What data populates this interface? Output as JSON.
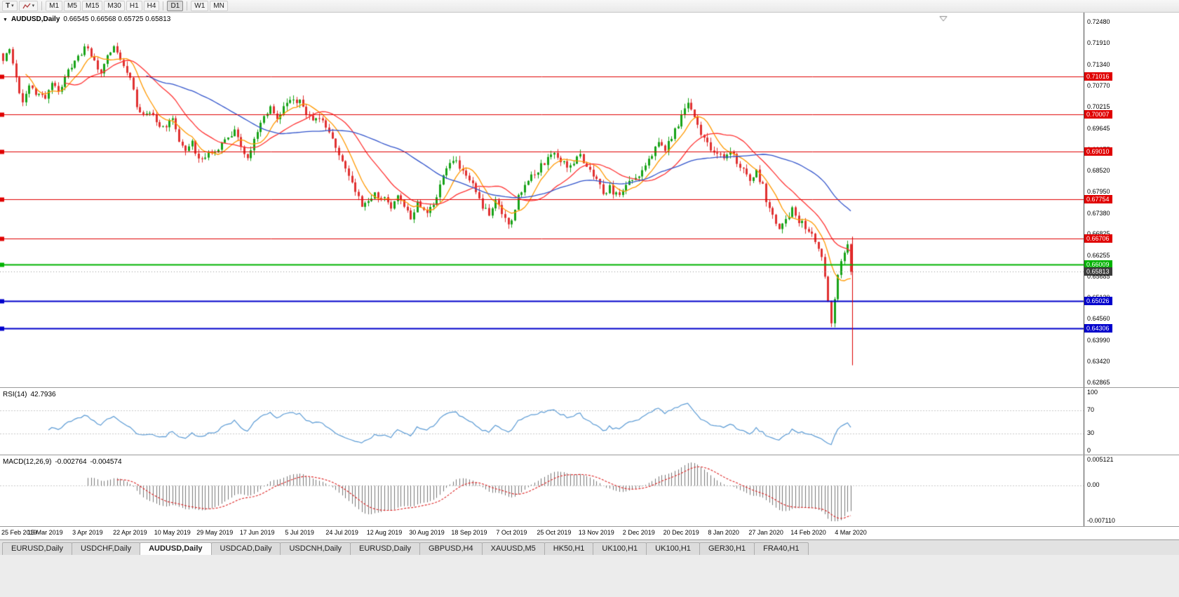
{
  "toolbar": {
    "templates_glyph": "T",
    "caret_glyph": "▾",
    "timeframes": [
      "M1",
      "M5",
      "M15",
      "M30",
      "H1",
      "H4",
      "D1",
      "W1",
      "MN"
    ],
    "active_timeframe": "D1"
  },
  "chart": {
    "icon": "▼",
    "title": "AUDUSD,Daily",
    "ohlc": "0.66545 0.66568 0.65725 0.65813"
  },
  "rsi_panel": {
    "label": "RSI(14)",
    "value": "42.7936"
  },
  "macd_panel": {
    "label": "MACD(12,26,9)",
    "value_main": "-0.002764",
    "value_signal": "-0.004574"
  },
  "tabs": {
    "items": [
      "EURUSD,Daily",
      "USDCHF,Daily",
      "AUDUSD,Daily",
      "USDCAD,Daily",
      "USDCNH,Daily",
      "EURUSD,Daily",
      "GBPUSD,H4",
      "XAUUSD,M5",
      "HK50,H1",
      "UK100,H1",
      "UK100,H1",
      "GER30,H1",
      "FRA40,H1"
    ],
    "active_index": 2
  },
  "chart_data": {
    "type": "candlestick",
    "symbol": "AUDUSD",
    "period": "Daily",
    "last_bar": {
      "o": 0.66545,
      "h": 0.66568,
      "l": 0.65725,
      "c": 0.65813
    },
    "bars": 261,
    "bars_per_label": 13,
    "x_labels": [
      "25 Feb 2019",
      "15 Mar 2019",
      "3 Apr 2019",
      "22 Apr 2019",
      "10 May 2019",
      "29 May 2019",
      "17 Jun 2019",
      "5 Jul 2019",
      "24 Jul 2019",
      "12 Aug 2019",
      "30 Aug 2019",
      "18 Sep 2019",
      "7 Oct 2019",
      "25 Oct 2019",
      "13 Nov 2019",
      "2 Dec 2019",
      "20 Dec 2019",
      "8 Jan 2020",
      "27 Jan 2020",
      "14 Feb 2020",
      "4 Mar 2020"
    ],
    "y_ticks": [
      "0.72480",
      "0.71910",
      "0.71340",
      "0.70770",
      "0.70215",
      "0.69645",
      "0.69075",
      "0.68520",
      "0.67950",
      "0.67380",
      "0.66825",
      "0.66255",
      "0.65685",
      "0.65130",
      "0.64560",
      "0.63990",
      "0.63420",
      "0.62865"
    ],
    "ylim": [
      0.62865,
      0.7248
    ],
    "price_anchors": [
      [
        0,
        0.7148
      ],
      [
        2,
        0.7182
      ],
      [
        4,
        0.7092
      ],
      [
        6,
        0.7035
      ],
      [
        8,
        0.7072
      ],
      [
        10,
        0.7058
      ],
      [
        13,
        0.7045
      ],
      [
        15,
        0.7078
      ],
      [
        17,
        0.7068
      ],
      [
        19,
        0.7098
      ],
      [
        22,
        0.7142
      ],
      [
        24,
        0.7168
      ],
      [
        26,
        0.7183
      ],
      [
        28,
        0.714
      ],
      [
        30,
        0.7118
      ],
      [
        32,
        0.7162
      ],
      [
        34,
        0.7175
      ],
      [
        36,
        0.7148
      ],
      [
        39,
        0.7098
      ],
      [
        41,
        0.7022
      ],
      [
        43,
        0.6996
      ],
      [
        45,
        0.7014
      ],
      [
        47,
        0.6982
      ],
      [
        49,
        0.6962
      ],
      [
        52,
        0.6986
      ],
      [
        54,
        0.6936
      ],
      [
        56,
        0.6902
      ],
      [
        58,
        0.6924
      ],
      [
        60,
        0.6882
      ],
      [
        63,
        0.6898
      ],
      [
        65,
        0.6894
      ],
      [
        67,
        0.6924
      ],
      [
        69,
        0.6944
      ],
      [
        71,
        0.6958
      ],
      [
        73,
        0.6922
      ],
      [
        75,
        0.6886
      ],
      [
        78,
        0.6954
      ],
      [
        80,
        0.6988
      ],
      [
        82,
        0.7014
      ],
      [
        84,
        0.6992
      ],
      [
        86,
        0.7024
      ],
      [
        88,
        0.7046
      ],
      [
        91,
        0.7036
      ],
      [
        93,
        0.7008
      ],
      [
        95,
        0.6976
      ],
      [
        97,
        0.6999
      ],
      [
        99,
        0.6962
      ],
      [
        101,
        0.693
      ],
      [
        104,
        0.6882
      ],
      [
        106,
        0.6846
      ],
      [
        108,
        0.6796
      ],
      [
        110,
        0.6756
      ],
      [
        112,
        0.6774
      ],
      [
        114,
        0.6792
      ],
      [
        117,
        0.6772
      ],
      [
        119,
        0.6746
      ],
      [
        121,
        0.678
      ],
      [
        123,
        0.6762
      ],
      [
        125,
        0.6726
      ],
      [
        127,
        0.6766
      ],
      [
        130,
        0.6736
      ],
      [
        132,
        0.6762
      ],
      [
        134,
        0.6812
      ],
      [
        136,
        0.6856
      ],
      [
        138,
        0.6882
      ],
      [
        140,
        0.6858
      ],
      [
        143,
        0.683
      ],
      [
        145,
        0.6788
      ],
      [
        147,
        0.6756
      ],
      [
        149,
        0.6736
      ],
      [
        151,
        0.6772
      ],
      [
        153,
        0.6742
      ],
      [
        155,
        0.6702
      ],
      [
        156,
        0.6722
      ],
      [
        158,
        0.6786
      ],
      [
        160,
        0.6816
      ],
      [
        162,
        0.6838
      ],
      [
        164,
        0.6852
      ],
      [
        166,
        0.6872
      ],
      [
        169,
        0.6893
      ],
      [
        171,
        0.688
      ],
      [
        173,
        0.6856
      ],
      [
        175,
        0.6872
      ],
      [
        177,
        0.6893
      ],
      [
        179,
        0.6862
      ],
      [
        182,
        0.6822
      ],
      [
        184,
        0.6792
      ],
      [
        186,
        0.6806
      ],
      [
        188,
        0.6786
      ],
      [
        190,
        0.6802
      ],
      [
        192,
        0.6822
      ],
      [
        195,
        0.6842
      ],
      [
        197,
        0.6862
      ],
      [
        199,
        0.6892
      ],
      [
        201,
        0.6936
      ],
      [
        203,
        0.6908
      ],
      [
        205,
        0.6938
      ],
      [
        207,
        0.6972
      ],
      [
        208,
        0.6998
      ],
      [
        210,
        0.7028
      ],
      [
        212,
        0.6998
      ],
      [
        214,
        0.6948
      ],
      [
        216,
        0.6918
      ],
      [
        218,
        0.6898
      ],
      [
        221,
        0.6892
      ],
      [
        223,
        0.6906
      ],
      [
        225,
        0.6878
      ],
      [
        227,
        0.6852
      ],
      [
        229,
        0.6828
      ],
      [
        231,
        0.6846
      ],
      [
        233,
        0.6808
      ],
      [
        234,
        0.6774
      ],
      [
        236,
        0.6734
      ],
      [
        238,
        0.6702
      ],
      [
        240,
        0.6722
      ],
      [
        242,
        0.6746
      ],
      [
        244,
        0.6718
      ],
      [
        247,
        0.6692
      ],
      [
        249,
        0.6664
      ],
      [
        251,
        0.6612
      ],
      [
        252,
        0.6562
      ],
      [
        253,
        0.6498
      ],
      [
        254,
        0.6452
      ],
      [
        255,
        0.6512
      ],
      [
        256,
        0.6568
      ],
      [
        257,
        0.6612
      ],
      [
        258,
        0.6638
      ],
      [
        259,
        0.66545
      ],
      [
        260,
        0.65813
      ]
    ],
    "crash_bar": {
      "index": 254,
      "low": 0.6434
    },
    "horizontal_lines": [
      {
        "value": 0.71016,
        "color": "#e00000",
        "width": 1
      },
      {
        "value": 0.70007,
        "color": "#e00000",
        "width": 1
      },
      {
        "value": 0.6901,
        "color": "#e00000",
        "width": 1
      },
      {
        "value": 0.67754,
        "color": "#e00000",
        "width": 1
      },
      {
        "value": 0.66706,
        "color": "#e00000",
        "width": 1
      },
      {
        "value": 0.66009,
        "color": "#00b300",
        "width": 2
      },
      {
        "value": 0.65026,
        "color": "#0000cc",
        "width": 2
      },
      {
        "value": 0.64306,
        "color": "#0000cc",
        "width": 2
      }
    ],
    "current_price": {
      "value": 0.65813,
      "label_bg": "#3c3c3c"
    },
    "vertical_line": {
      "bar": 260,
      "from": 0.6675,
      "to": 0.6332,
      "color": "#dd0000"
    },
    "moving_averages": [
      {
        "period": 8,
        "color": "#ff9900"
      },
      {
        "period": 20,
        "color": "#ff3333"
      },
      {
        "period": 45,
        "color": "#3355cc"
      }
    ],
    "candle_up_color": "#18a318",
    "candle_down_color": "#e03030",
    "rsi": {
      "period": 14,
      "color": "#5b9bd5",
      "levels": [
        "100",
        "70",
        "30",
        "0"
      ],
      "guide_levels": [
        70,
        30
      ]
    },
    "macd": {
      "fast": 12,
      "slow": 26,
      "signal": 9,
      "ylim": [
        -0.00711,
        0.005121
      ],
      "y_ticks": [
        "0.005121",
        "0.00",
        "-0.007110"
      ],
      "histogram_color": "#777777",
      "signal_color": "#dd2222"
    }
  }
}
